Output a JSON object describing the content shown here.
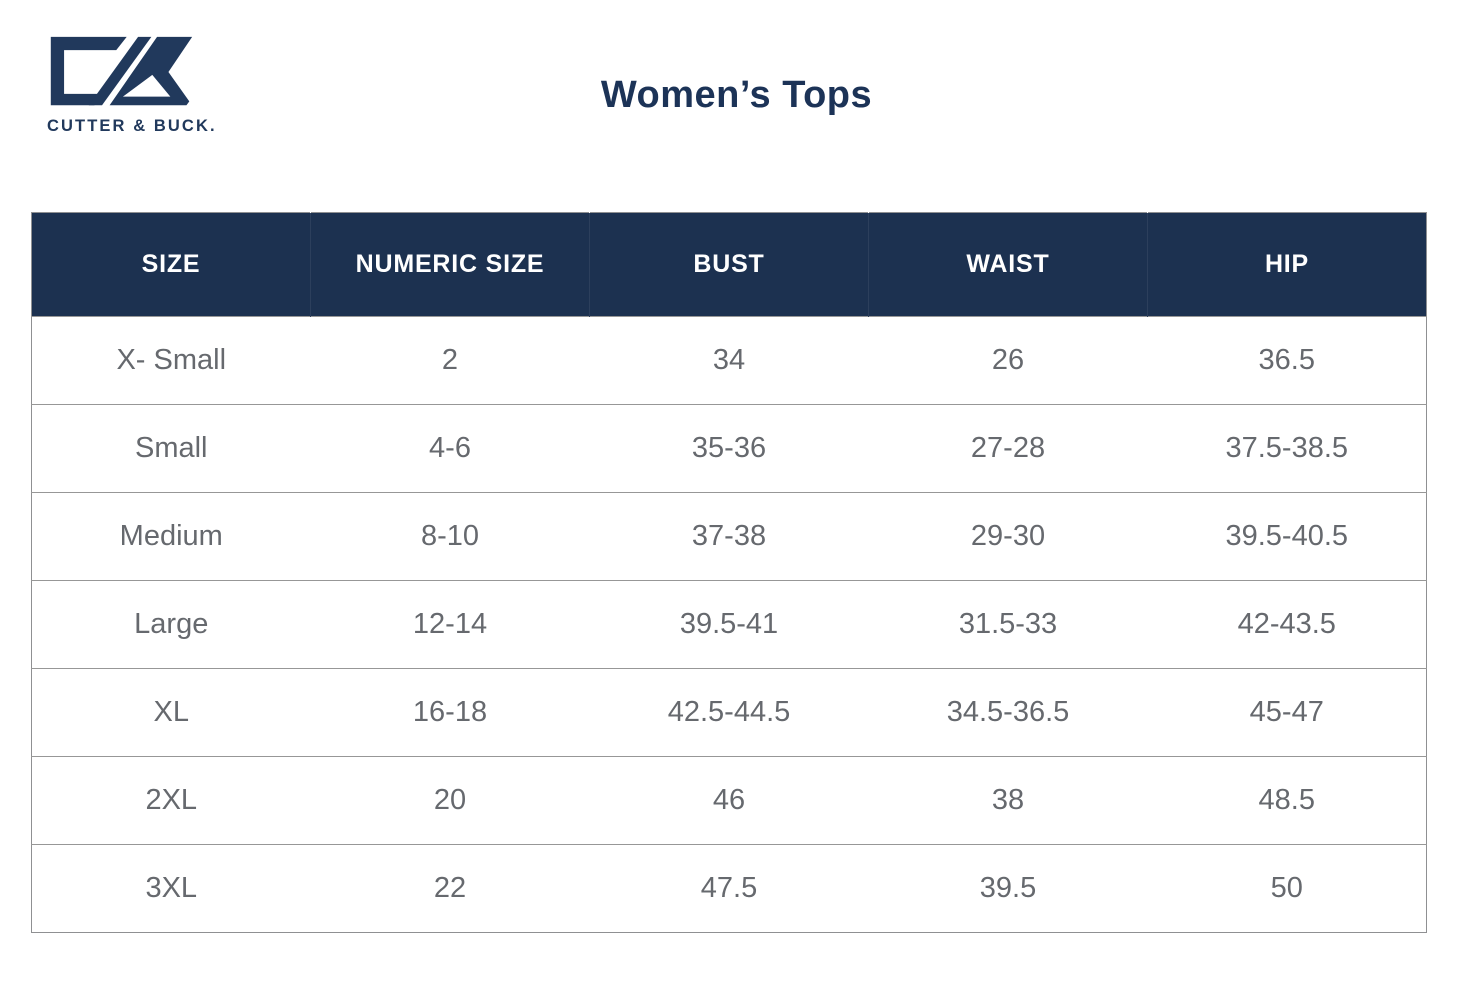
{
  "page": {
    "title": "Women’s Tops"
  },
  "brand": {
    "wordmark": "CUTTER & BUCK.",
    "logo_mark": "cutter-buck-cb-monogram"
  },
  "colors": {
    "header_background": "#1c3150",
    "logo_navy": "#21395c",
    "title_navy": "#1c3357",
    "header_text": "#ffffff",
    "cell_text": "#66696e",
    "border_gray": "#8f9092"
  },
  "table": {
    "headers": [
      "SIZE",
      "NUMERIC SIZE",
      "BUST",
      "WAIST",
      "HIP"
    ],
    "rows": [
      [
        "X- Small",
        "2",
        "34",
        "26",
        "36.5"
      ],
      [
        "Small",
        "4-6",
        "35-36",
        "27-28",
        "37.5-38.5"
      ],
      [
        "Medium",
        "8-10",
        "37-38",
        "29-30",
        "39.5-40.5"
      ],
      [
        "Large",
        "12-14",
        "39.5-41",
        "31.5-33",
        "42-43.5"
      ],
      [
        "XL",
        "16-18",
        "42.5-44.5",
        "34.5-36.5",
        "45-47"
      ],
      [
        "2XL",
        "20",
        "46",
        "38",
        "48.5"
      ],
      [
        "3XL",
        "22",
        "47.5",
        "39.5",
        "50"
      ]
    ]
  }
}
